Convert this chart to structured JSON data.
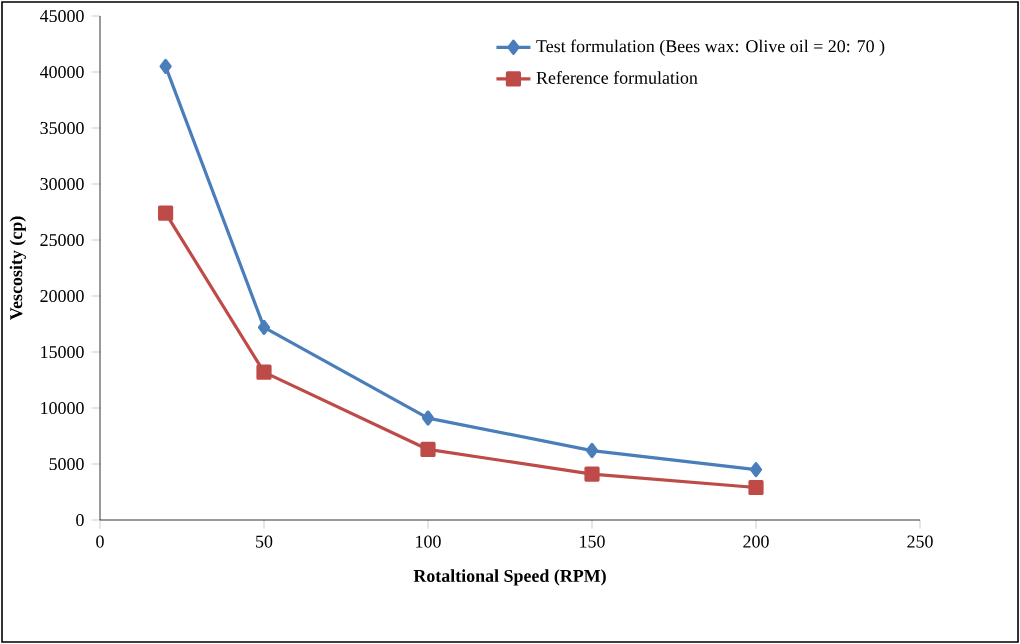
{
  "chart_data": {
    "type": "line",
    "xlabel": "Rotaltional Speed (RPM)",
    "ylabel": "Vescosity (cp)",
    "x": [
      20,
      50,
      100,
      150,
      200
    ],
    "series": [
      {
        "name": "Test formulation (Bees wax: Olive oil = 20: 70 )",
        "color": "#4a7ebb",
        "marker": "diamond",
        "values": [
          40500,
          17200,
          9100,
          6200,
          4500
        ]
      },
      {
        "name": "Reference formulation",
        "color": "#be4b48",
        "marker": "square",
        "values": [
          27400,
          13200,
          6300,
          4100,
          2900
        ]
      }
    ],
    "xlim": [
      0,
      250
    ],
    "xticks": [
      0,
      50,
      100,
      150,
      200,
      250
    ],
    "ylim": [
      0,
      45000
    ],
    "yticks": [
      0,
      5000,
      10000,
      15000,
      20000,
      25000,
      30000,
      35000,
      40000,
      45000
    ],
    "grid": false,
    "legend": "top right",
    "line_style": "solid"
  }
}
